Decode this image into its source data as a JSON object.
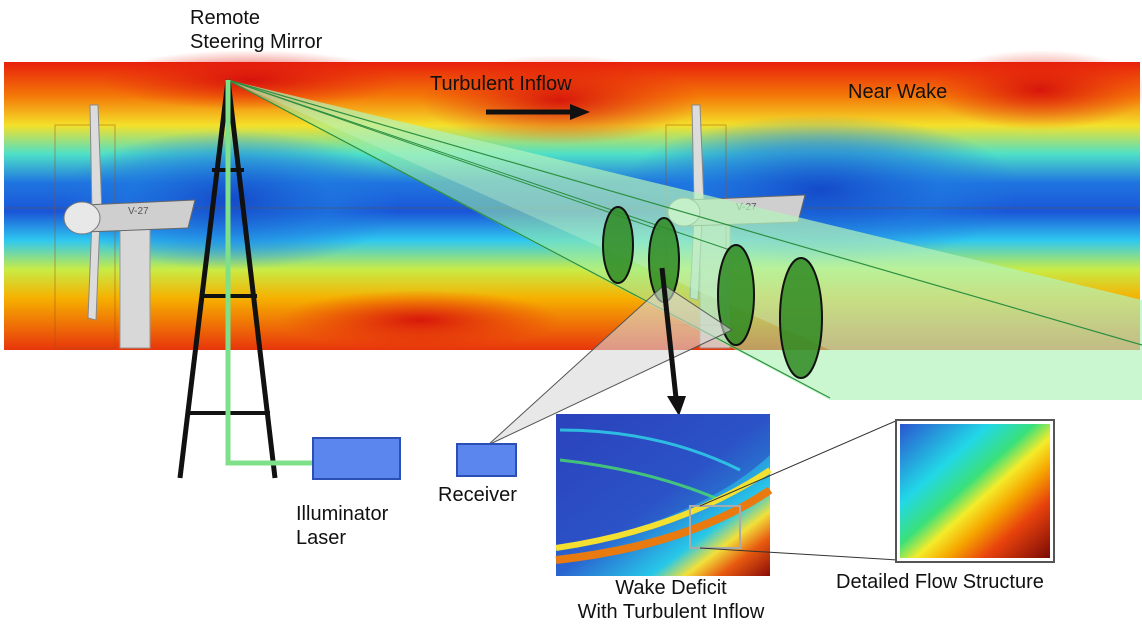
{
  "labels": {
    "remote_mirror_line1": "Remote",
    "remote_mirror_line2": "Steering Mirror",
    "turbulent_inflow": "Turbulent Inflow",
    "near_wake": "Near Wake",
    "illuminator_line1": "Illuminator",
    "illuminator_line2": "Laser",
    "receiver": "Receiver",
    "wake_deficit_line1": "Wake Deficit",
    "wake_deficit_line2": "With Turbulent Inflow",
    "detailed_flow": "Detailed Flow Structure"
  },
  "turbine_tag": "V-27",
  "colors": {
    "hot": "#e8200c",
    "warm": "#f6a800",
    "mid": "#f4ec2a",
    "cool": "#22d8e6",
    "cold": "#1a55d8",
    "ellipse": "#2f8a22",
    "beam": "#9ff0a8",
    "box": "#5b86ee"
  },
  "icons": [
    "wind-turbine-icon",
    "lidar-tower-icon",
    "arrow-right-icon",
    "arrow-down-icon"
  ]
}
